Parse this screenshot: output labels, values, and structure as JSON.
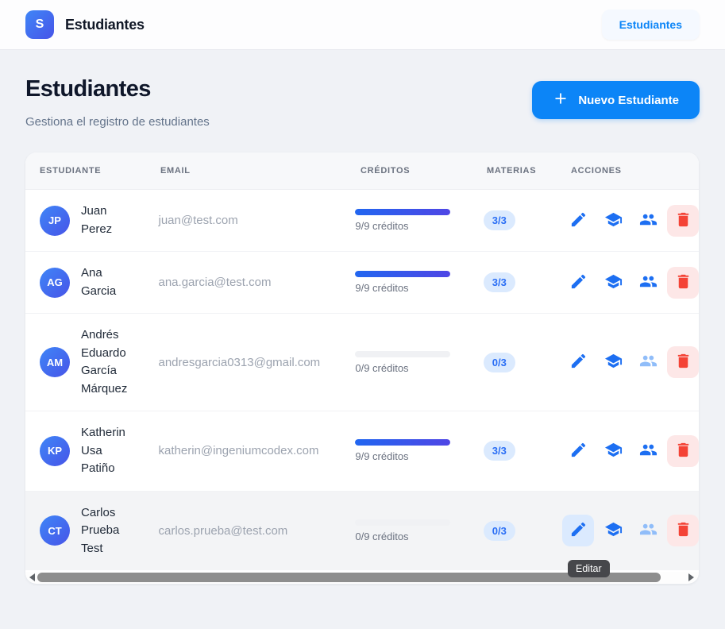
{
  "topbar": {
    "logo_letter": "S",
    "app_title": "Estudiantes",
    "nav_item": "Estudiantes"
  },
  "page": {
    "title": "Estudiantes",
    "subtitle": "Gestiona el registro de estudiantes",
    "new_student_button": "Nuevo Estudiante"
  },
  "table": {
    "columns": [
      "Estudiante",
      "Email",
      "Créditos",
      "Materias",
      "Acciones"
    ],
    "rows": [
      {
        "initials": "JP",
        "name": "Juan Perez",
        "email": "juan@test.com",
        "credits_label": "9/9 créditos",
        "progress_pct": 100,
        "materias": "3/3",
        "people_disabled": false,
        "edit_hover": false,
        "row_hover": false
      },
      {
        "initials": "AG",
        "name": "Ana Garcia",
        "email": "ana.garcia@test.com",
        "credits_label": "9/9 créditos",
        "progress_pct": 100,
        "materias": "3/3",
        "people_disabled": false,
        "edit_hover": false,
        "row_hover": false
      },
      {
        "initials": "AM",
        "name": "Andrés Eduardo García Márquez",
        "email": "andresgarcia0313@gmail.com",
        "credits_label": "0/9 créditos",
        "progress_pct": 0,
        "materias": "0/3",
        "people_disabled": true,
        "edit_hover": false,
        "row_hover": false
      },
      {
        "initials": "KP",
        "name": "Katherin Usa Patiño",
        "email": "katherin@ingeniumcodex.com",
        "credits_label": "9/9 créditos",
        "progress_pct": 100,
        "materias": "3/3",
        "people_disabled": false,
        "edit_hover": false,
        "row_hover": false
      },
      {
        "initials": "CT",
        "name": "Carlos Prueba Test",
        "email": "carlos.prueba@test.com",
        "credits_label": "0/9 créditos",
        "progress_pct": 0,
        "materias": "0/3",
        "people_disabled": true,
        "edit_hover": true,
        "row_hover": true
      }
    ],
    "action_icons": [
      "edit-icon",
      "school-icon",
      "group-icon",
      "trash-icon"
    ],
    "tooltip": "Editar"
  },
  "colors": {
    "page_bg": "#f0f2f6",
    "accent": "#0c85f7",
    "icon_blue": "#1d6ff2",
    "icon_blue_disabled": "#90bdf9",
    "danger": "#f44336",
    "danger_bg": "#fde7e7",
    "badge_bg": "#dbeafe",
    "badge_text": "#2a6ef5",
    "avatar_gradient_from": "#3f86f7",
    "avatar_gradient_to": "#4754e8",
    "progress_gradient_from": "#2166f0",
    "progress_gradient_to": "#4f46e5",
    "tooltip_bg": "#46474b"
  }
}
